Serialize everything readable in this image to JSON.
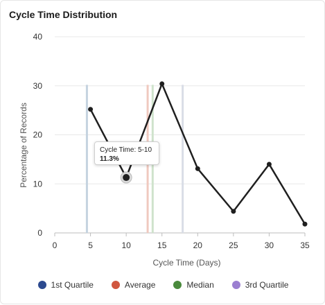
{
  "title": "Cycle Time Distribution",
  "chart_data": {
    "type": "line",
    "title": "Cycle Time Distribution",
    "xlabel": "Cycle Time (Days)",
    "ylabel": "Percentage of Records",
    "xlim": [
      0,
      35
    ],
    "ylim": [
      0,
      40
    ],
    "xticks": [
      0,
      5,
      10,
      15,
      20,
      25,
      30,
      35
    ],
    "yticks": [
      0,
      10,
      20,
      30,
      40
    ],
    "grid": "horizontal",
    "series": [
      {
        "x": [
          5,
          10,
          15,
          20,
          25,
          30,
          35
        ],
        "y": [
          25.2,
          11.3,
          30.4,
          13.1,
          4.4,
          14.0,
          1.8
        ],
        "color": "#1f1f1f"
      }
    ],
    "reference_lines": [
      {
        "name": "1st Quartile",
        "x": 4.5,
        "color": "#c5d3e0"
      },
      {
        "name": "Average",
        "x": 13.0,
        "color": "#f0c9bf"
      },
      {
        "name": "Median",
        "x": 13.7,
        "color": "#cfe3cc"
      },
      {
        "name": "3rd Quartile",
        "x": 17.9,
        "color": "#d9dde6"
      }
    ],
    "legend": {
      "placement": "bottom",
      "items": [
        {
          "label": "1st Quartile",
          "color": "#2c4a8f"
        },
        {
          "label": "Average",
          "color": "#d0563f"
        },
        {
          "label": "Median",
          "color": "#4a8a3c"
        },
        {
          "label": "3rd Quartile",
          "color": "#9b7fd1"
        }
      ]
    }
  },
  "tooltip": {
    "line1": "Cycle Time: 5-10",
    "line2": "11.3%"
  }
}
